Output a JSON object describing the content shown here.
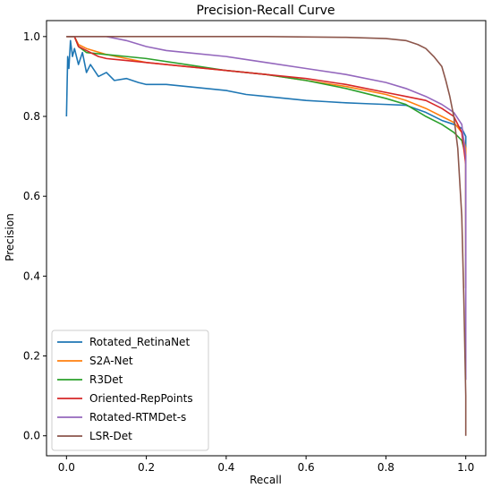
{
  "chart_data": {
    "type": "line",
    "title": "Precision-Recall Curve",
    "xlabel": "Recall",
    "ylabel": "Precision",
    "xlim": [
      -0.05,
      1.05
    ],
    "ylim": [
      -0.05,
      1.04
    ],
    "xticks": [
      "0.0",
      "0.2",
      "0.4",
      "0.6",
      "0.8",
      "1.0"
    ],
    "yticks": [
      "0.0",
      "0.2",
      "0.4",
      "0.6",
      "0.8",
      "1.0"
    ],
    "grid": false,
    "legend_position": "lower-left",
    "series": [
      {
        "name": "Rotated_RetinaNet",
        "color": "#1f77b4",
        "points": [
          [
            0.0,
            0.8
          ],
          [
            0.003,
            0.95
          ],
          [
            0.006,
            0.92
          ],
          [
            0.01,
            0.99
          ],
          [
            0.015,
            0.95
          ],
          [
            0.02,
            0.97
          ],
          [
            0.03,
            0.93
          ],
          [
            0.04,
            0.96
          ],
          [
            0.05,
            0.91
          ],
          [
            0.06,
            0.93
          ],
          [
            0.08,
            0.9
          ],
          [
            0.1,
            0.91
          ],
          [
            0.12,
            0.89
          ],
          [
            0.15,
            0.895
          ],
          [
            0.18,
            0.885
          ],
          [
            0.2,
            0.88
          ],
          [
            0.25,
            0.88
          ],
          [
            0.3,
            0.875
          ],
          [
            0.35,
            0.87
          ],
          [
            0.4,
            0.865
          ],
          [
            0.45,
            0.855
          ],
          [
            0.5,
            0.85
          ],
          [
            0.55,
            0.845
          ],
          [
            0.6,
            0.84
          ],
          [
            0.65,
            0.837
          ],
          [
            0.7,
            0.834
          ],
          [
            0.75,
            0.832
          ],
          [
            0.8,
            0.83
          ],
          [
            0.85,
            0.828
          ],
          [
            0.9,
            0.81
          ],
          [
            0.94,
            0.79
          ],
          [
            0.97,
            0.78
          ],
          [
            0.99,
            0.77
          ],
          [
            1.0,
            0.75
          ],
          [
            1.0,
            0.7
          ]
        ]
      },
      {
        "name": "S2A-Net",
        "color": "#ff7f0e",
        "points": [
          [
            0.0,
            1.0
          ],
          [
            0.02,
            1.0
          ],
          [
            0.03,
            0.98
          ],
          [
            0.05,
            0.97
          ],
          [
            0.1,
            0.955
          ],
          [
            0.15,
            0.945
          ],
          [
            0.2,
            0.935
          ],
          [
            0.3,
            0.925
          ],
          [
            0.4,
            0.915
          ],
          [
            0.5,
            0.905
          ],
          [
            0.6,
            0.89
          ],
          [
            0.7,
            0.875
          ],
          [
            0.8,
            0.855
          ],
          [
            0.85,
            0.84
          ],
          [
            0.9,
            0.82
          ],
          [
            0.94,
            0.8
          ],
          [
            0.97,
            0.785
          ],
          [
            0.99,
            0.76
          ],
          [
            1.0,
            0.72
          ],
          [
            1.0,
            0.55
          ],
          [
            1.0,
            0.45
          ]
        ]
      },
      {
        "name": "R3Det",
        "color": "#2ca02c",
        "points": [
          [
            0.0,
            1.0
          ],
          [
            0.02,
            1.0
          ],
          [
            0.03,
            0.975
          ],
          [
            0.05,
            0.96
          ],
          [
            0.1,
            0.955
          ],
          [
            0.15,
            0.95
          ],
          [
            0.2,
            0.945
          ],
          [
            0.3,
            0.93
          ],
          [
            0.4,
            0.915
          ],
          [
            0.5,
            0.905
          ],
          [
            0.6,
            0.89
          ],
          [
            0.7,
            0.87
          ],
          [
            0.8,
            0.845
          ],
          [
            0.85,
            0.83
          ],
          [
            0.9,
            0.8
          ],
          [
            0.94,
            0.78
          ],
          [
            0.97,
            0.76
          ],
          [
            0.99,
            0.74
          ],
          [
            1.0,
            0.7
          ],
          [
            1.0,
            0.55
          ],
          [
            1.0,
            0.37
          ]
        ]
      },
      {
        "name": "Oriented-RepPoints",
        "color": "#d62728",
        "points": [
          [
            0.0,
            1.0
          ],
          [
            0.02,
            1.0
          ],
          [
            0.03,
            0.975
          ],
          [
            0.05,
            0.965
          ],
          [
            0.08,
            0.95
          ],
          [
            0.1,
            0.945
          ],
          [
            0.15,
            0.94
          ],
          [
            0.2,
            0.935
          ],
          [
            0.3,
            0.925
          ],
          [
            0.4,
            0.915
          ],
          [
            0.5,
            0.905
          ],
          [
            0.6,
            0.895
          ],
          [
            0.7,
            0.88
          ],
          [
            0.8,
            0.86
          ],
          [
            0.85,
            0.85
          ],
          [
            0.9,
            0.84
          ],
          [
            0.94,
            0.82
          ],
          [
            0.97,
            0.8
          ],
          [
            0.99,
            0.76
          ],
          [
            1.0,
            0.68
          ],
          [
            1.0,
            0.5
          ],
          [
            1.0,
            0.37
          ]
        ]
      },
      {
        "name": "Rotated-RTMDet-s",
        "color": "#9467bd",
        "points": [
          [
            0.0,
            1.0
          ],
          [
            0.1,
            1.0
          ],
          [
            0.15,
            0.99
          ],
          [
            0.2,
            0.975
          ],
          [
            0.25,
            0.965
          ],
          [
            0.3,
            0.96
          ],
          [
            0.4,
            0.95
          ],
          [
            0.5,
            0.935
          ],
          [
            0.6,
            0.92
          ],
          [
            0.7,
            0.905
          ],
          [
            0.8,
            0.885
          ],
          [
            0.85,
            0.87
          ],
          [
            0.9,
            0.85
          ],
          [
            0.94,
            0.83
          ],
          [
            0.97,
            0.81
          ],
          [
            0.99,
            0.78
          ],
          [
            1.0,
            0.7
          ],
          [
            1.0,
            0.5
          ],
          [
            1.0,
            0.3
          ],
          [
            1.0,
            0.14
          ]
        ]
      },
      {
        "name": "LSR-Det",
        "color": "#8c564b",
        "points": [
          [
            0.0,
            1.0
          ],
          [
            0.3,
            1.0
          ],
          [
            0.5,
            1.0
          ],
          [
            0.7,
            0.998
          ],
          [
            0.8,
            0.995
          ],
          [
            0.85,
            0.99
          ],
          [
            0.88,
            0.98
          ],
          [
            0.9,
            0.97
          ],
          [
            0.92,
            0.95
          ],
          [
            0.94,
            0.925
          ],
          [
            0.95,
            0.89
          ],
          [
            0.96,
            0.85
          ],
          [
            0.97,
            0.8
          ],
          [
            0.98,
            0.72
          ],
          [
            0.99,
            0.55
          ],
          [
            0.995,
            0.35
          ],
          [
            1.0,
            0.1
          ],
          [
            1.0,
            0.0
          ]
        ]
      }
    ]
  }
}
